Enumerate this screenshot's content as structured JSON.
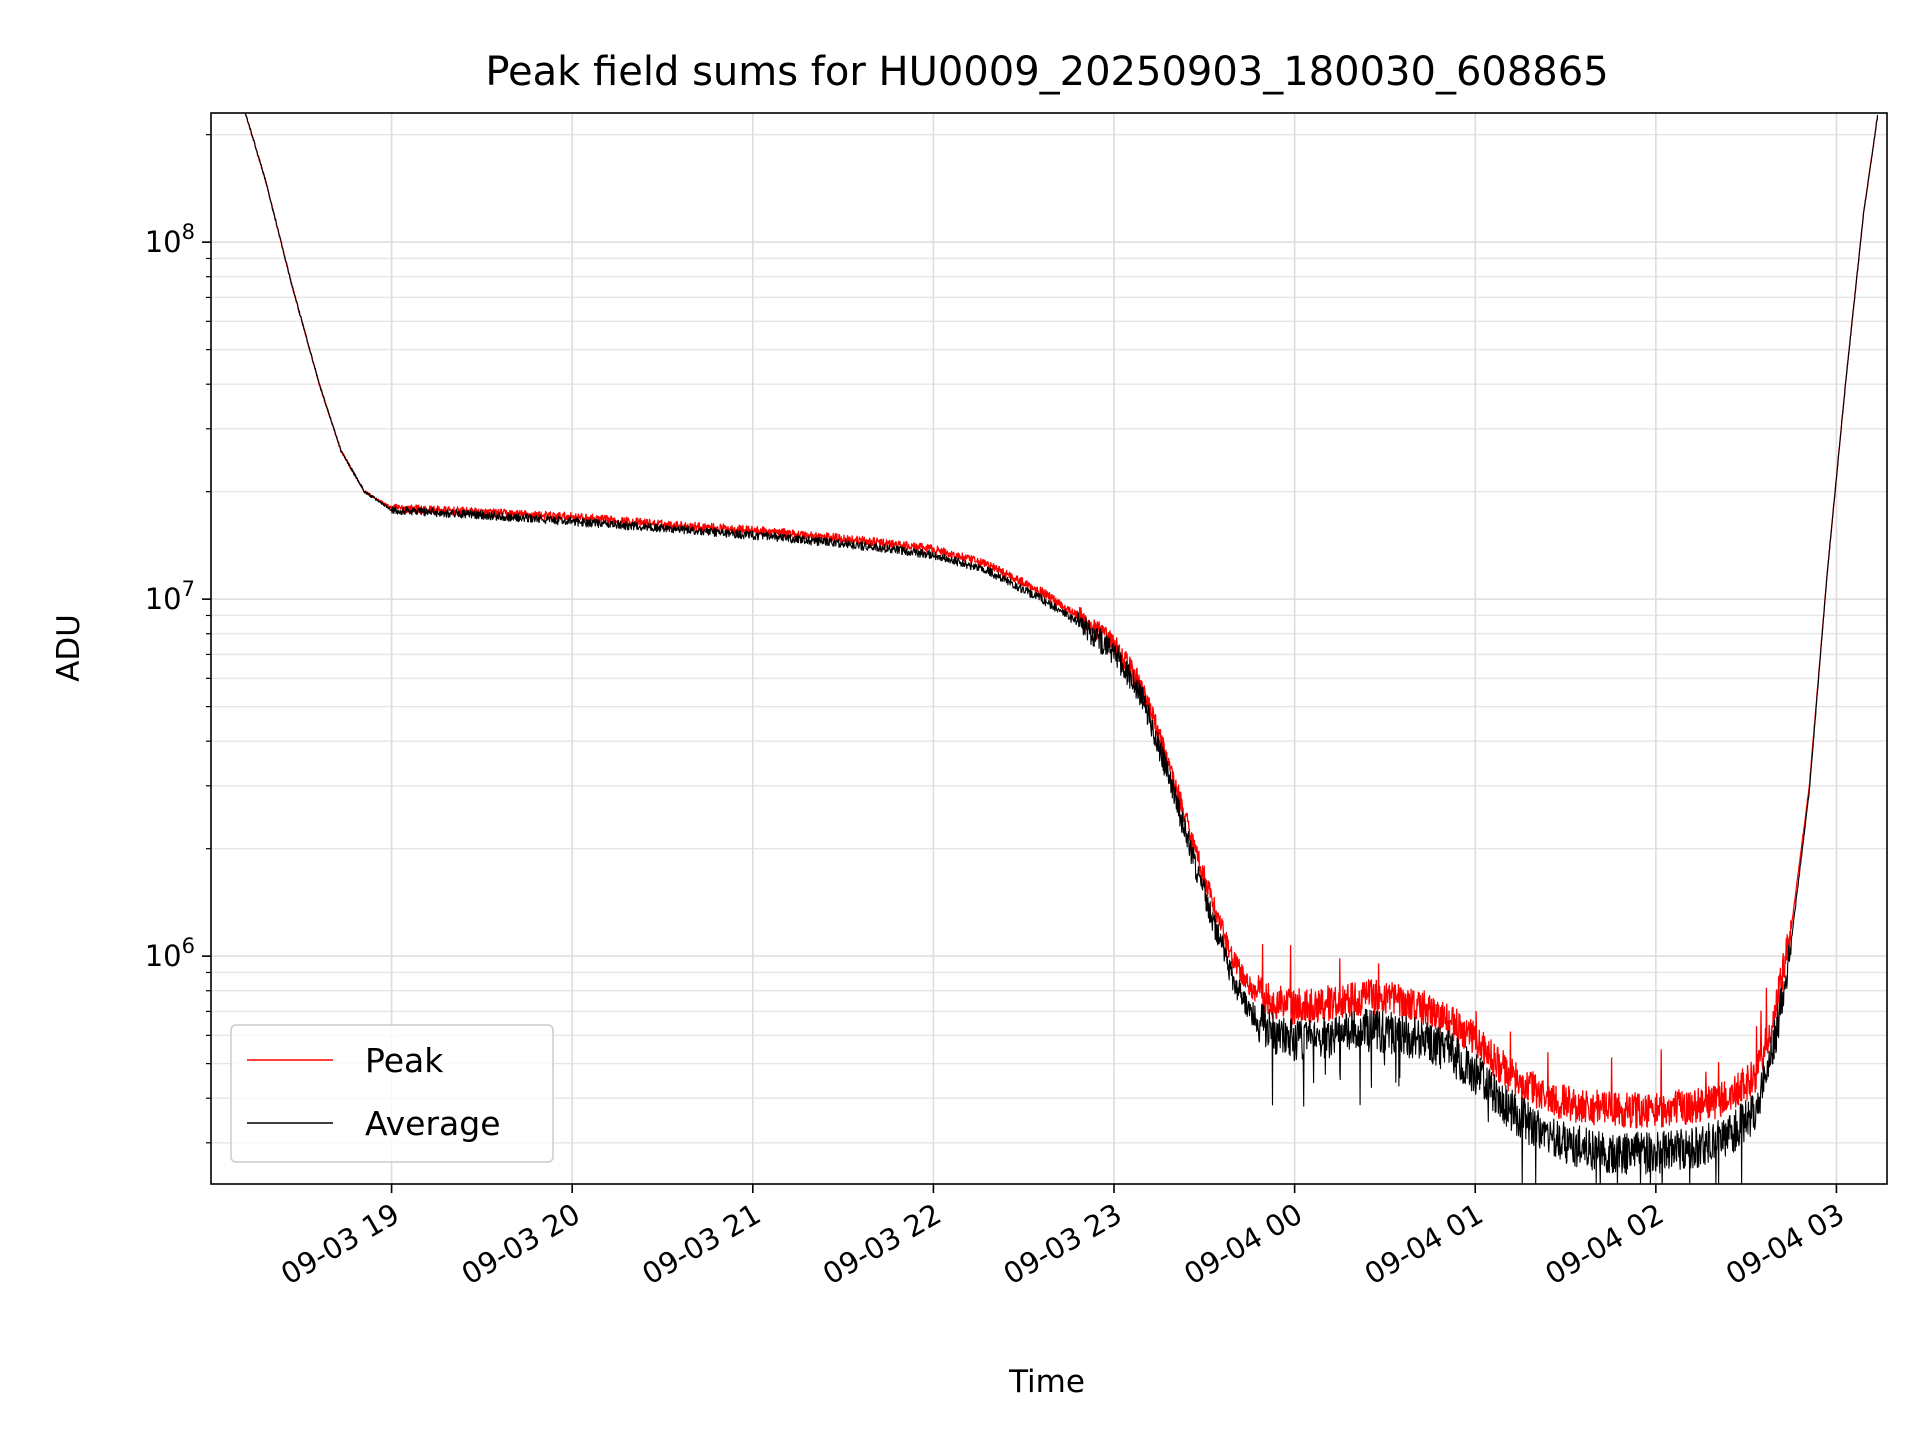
{
  "chart_data": {
    "type": "line",
    "title": "Peak field sums for HU0009_20250903_180030_608865",
    "xlabel": "Time",
    "ylabel": "ADU",
    "yscale": "log",
    "ylim": [
      230000,
      230000000
    ],
    "xlim_hours_since_0903_1800": [
      0.0,
      9.28
    ],
    "grid": true,
    "legend_position": "lower-left",
    "x_ticks": [
      {
        "hour": 1,
        "label": "09-03 19"
      },
      {
        "hour": 2,
        "label": "09-03 20"
      },
      {
        "hour": 3,
        "label": "09-03 21"
      },
      {
        "hour": 4,
        "label": "09-03 22"
      },
      {
        "hour": 5,
        "label": "09-03 23"
      },
      {
        "hour": 6,
        "label": "09-04 00"
      },
      {
        "hour": 7,
        "label": "09-04 01"
      },
      {
        "hour": 8,
        "label": "09-04 02"
      },
      {
        "hour": 9,
        "label": "09-04 03"
      }
    ],
    "y_ticks": [
      {
        "value": 1000000,
        "base": "10",
        "exp": "6"
      },
      {
        "value": 10000000,
        "base": "10",
        "exp": "7"
      },
      {
        "value": 100000000,
        "base": "10",
        "exp": "8"
      }
    ],
    "x_hours": [
      0.19,
      0.3,
      0.45,
      0.6,
      0.72,
      0.85,
      1.0,
      1.5,
      2.0,
      2.5,
      3.0,
      3.5,
      4.0,
      4.3,
      4.6,
      4.8,
      5.0,
      5.15,
      5.3,
      5.45,
      5.55,
      5.65,
      5.75,
      5.85,
      6.0,
      6.2,
      6.4,
      6.55,
      6.7,
      6.85,
      7.0,
      7.2,
      7.4,
      7.6,
      7.8,
      8.0,
      8.2,
      8.4,
      8.55,
      8.65,
      8.75,
      8.85,
      8.95,
      9.05,
      9.15,
      9.23
    ],
    "series": [
      {
        "name": "Peak",
        "color": "#ff0000",
        "noise": 0.05,
        "values": [
          230000000,
          150000000,
          75000000,
          40000000,
          26000000,
          20000000,
          18000000,
          17500000,
          17000000,
          16200000,
          15600000,
          14800000,
          13800000,
          12500000,
          10500000,
          9000000,
          7500000,
          5800000,
          3500000,
          2000000,
          1400000,
          1000000,
          820000,
          760000,
          720000,
          740000,
          770000,
          760000,
          720000,
          660000,
          580000,
          460000,
          400000,
          380000,
          370000,
          370000,
          380000,
          400000,
          460000,
          650000,
          1200000,
          3000000,
          12000000,
          40000000,
          120000000,
          230000000
        ]
      },
      {
        "name": "Average",
        "color": "#000000",
        "noise": 0.06,
        "values": [
          230000000,
          150000000,
          75000000,
          40000000,
          26000000,
          20000000,
          17800000,
          17200000,
          16500000,
          15800000,
          15100000,
          14300000,
          13300000,
          12000000,
          10000000,
          8600000,
          7100000,
          5400000,
          3200000,
          1800000,
          1250000,
          880000,
          700000,
          620000,
          580000,
          590000,
          620000,
          610000,
          580000,
          540000,
          470000,
          370000,
          310000,
          290000,
          280000,
          280000,
          290000,
          310000,
          370000,
          550000,
          1100000,
          2900000,
          12000000,
          40000000,
          120000000,
          230000000
        ]
      }
    ]
  }
}
